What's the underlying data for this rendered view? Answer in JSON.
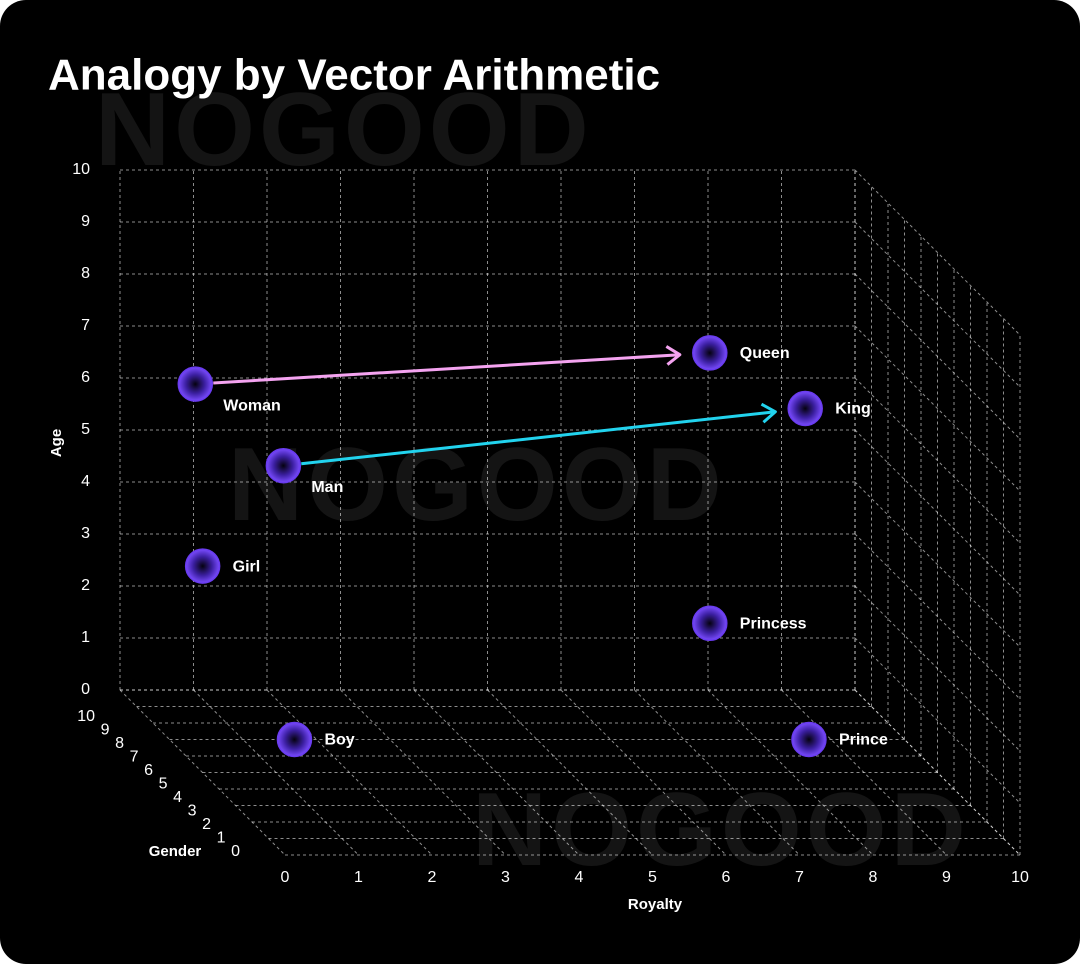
{
  "chart_data": {
    "type": "scatter3d",
    "title": "Analogy by Vector Arithmetic",
    "watermark": "NOGOOD",
    "xlabel": "Royalty",
    "ylabel": "Gender",
    "zlabel": "Age",
    "xlim": [
      0,
      10
    ],
    "ylim": [
      0,
      10
    ],
    "zlim": [
      0,
      10
    ],
    "xticks": [
      0,
      1,
      2,
      3,
      4,
      5,
      6,
      7,
      8,
      9,
      10
    ],
    "yticks": [
      0,
      1,
      2,
      3,
      4,
      5,
      6,
      7,
      8,
      9,
      10
    ],
    "zticks": [
      0,
      1,
      2,
      3,
      4,
      5,
      6,
      7,
      8,
      9,
      10
    ],
    "grid": true,
    "point_color": "#6a3cf0",
    "points": {
      "labels": [
        "Queen",
        "King",
        "Woman",
        "Man",
        "Girl",
        "Princess",
        "Boy",
        "Prince"
      ],
      "x": [
        7.8,
        8.2,
        0.8,
        1.1,
        0.9,
        7.8,
        1.7,
        8.7
      ],
      "y": [
        9,
        5,
        9,
        5,
        9,
        9,
        7,
        7
      ],
      "z": [
        6.8,
        7.0,
        6.2,
        5.9,
        2.7,
        1.6,
        0,
        0
      ]
    },
    "arrows": [
      {
        "from": "Woman",
        "to": "Queen",
        "color": "#f4a3f0"
      },
      {
        "from": "Man",
        "to": "King",
        "color": "#22d3ee"
      }
    ]
  }
}
